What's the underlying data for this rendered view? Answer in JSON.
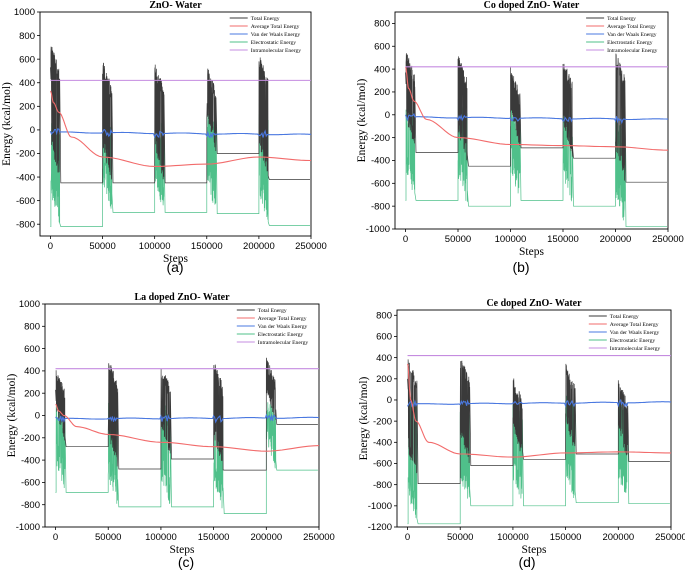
{
  "colors": {
    "total": "#3a3a3a",
    "average": "#f26b6b",
    "vdw": "#4a78e0",
    "electro": "#4fc08a",
    "intra": "#c58ce0"
  },
  "chart_data": [
    {
      "type": "line",
      "title": "ZnO- Water",
      "sublabel": "(a)",
      "xlabel": "Steps",
      "ylabel": "Energy (kcal/mol)",
      "xlim": [
        -10000,
        250000
      ],
      "ylim": [
        -900,
        1000
      ],
      "xticks": [
        0,
        50000,
        100000,
        150000,
        200000,
        250000
      ],
      "yticks": [
        -800,
        -600,
        -400,
        -200,
        0,
        200,
        400,
        600,
        800,
        1000
      ],
      "legend": [
        "Total Energy",
        "Average Total Energy",
        "Van der Waals Energy",
        "Electrostatic Energy",
        "Intramolecular Energy"
      ],
      "series": {
        "total": {
          "peaks": [
            730,
            590,
            580,
            560,
            650
          ],
          "levels": [
            -450,
            -450,
            -450,
            -200,
            -420
          ]
        },
        "electro": {
          "peaks": [
            80,
            130,
            140,
            160,
            190
          ],
          "levels": [
            -820,
            -700,
            -700,
            -710,
            -810
          ],
          "start": -820
        },
        "vdw": {
          "start": -20,
          "end": -40
        },
        "average": {
          "x": [
            0,
            3000,
            8000,
            20000,
            50000,
            100000,
            150000,
            200000,
            250000
          ],
          "y": [
            330,
            230,
            150,
            -60,
            -230,
            -310,
            -290,
            -230,
            -260
          ]
        },
        "intra": {
          "value": 420
        }
      }
    },
    {
      "type": "line",
      "title": "Co doped ZnO- Water",
      "sublabel": "(b)",
      "xlabel": "Steps",
      "ylabel": "Energy (kcal/mol)",
      "xlim": [
        -10000,
        250000
      ],
      "ylim": [
        -1000,
        900
      ],
      "xticks": [
        0,
        50000,
        100000,
        150000,
        200000,
        250000
      ],
      "yticks": [
        -1000,
        -800,
        -600,
        -400,
        -200,
        0,
        200,
        400,
        600,
        800
      ],
      "legend": [
        "Total Energy",
        "Average Total Energy",
        "Van der Waals Energy",
        "Electrostatic Energy",
        "Intramolecular Energy"
      ],
      "series": {
        "total": {
          "peaks": [
            570,
            540,
            420,
            510,
            560
          ],
          "levels": [
            -330,
            -450,
            -290,
            -380,
            -590
          ]
        },
        "electro": {
          "peaks": [
            120,
            140,
            80,
            40,
            -20
          ],
          "levels": [
            -750,
            -800,
            -750,
            -800,
            -980
          ],
          "start": -750
        },
        "vdw": {
          "start": -20,
          "end": -40
        },
        "average": {
          "x": [
            0,
            3000,
            8000,
            20000,
            50000,
            100000,
            150000,
            200000,
            250000
          ],
          "y": [
            420,
            230,
            120,
            -40,
            -200,
            -260,
            -270,
            -280,
            -310
          ]
        },
        "intra": {
          "value": 420
        }
      }
    },
    {
      "type": "line",
      "title": "La doped ZnO- Water",
      "sublabel": "(c)",
      "xlabel": "Steps",
      "ylabel": "Energy (kcal/mol)",
      "xlim": [
        -10000,
        250000
      ],
      "ylim": [
        -1000,
        1000
      ],
      "xticks": [
        0,
        50000,
        100000,
        150000,
        200000,
        250000
      ],
      "yticks": [
        -1000,
        -800,
        -600,
        -400,
        -200,
        0,
        200,
        400,
        600,
        800,
        1000
      ],
      "legend": [
        "Total Energy",
        "Average Total Energy",
        "Van der Waals Energy",
        "Electrostatic Energy",
        "Intramolecular Energy"
      ],
      "series": {
        "total": {
          "peaks": [
            430,
            520,
            480,
            500,
            530
          ],
          "levels": [
            -280,
            -480,
            -390,
            -490,
            -80
          ]
        },
        "electro": {
          "peaks": [
            100,
            120,
            140,
            120,
            160
          ],
          "levels": [
            -690,
            -820,
            -820,
            -880,
            -490
          ],
          "start": -690
        },
        "vdw": {
          "start": -30,
          "end": -20
        },
        "average": {
          "x": [
            0,
            3000,
            8000,
            20000,
            50000,
            100000,
            150000,
            200000,
            250000
          ],
          "y": [
            100,
            40,
            0,
            -100,
            -170,
            -240,
            -280,
            -320,
            -270
          ]
        },
        "intra": {
          "value": 420
        }
      }
    },
    {
      "type": "line",
      "title": "Ce doped ZnO- Water",
      "sublabel": "(d)",
      "xlabel": "Steps",
      "ylabel": "Energy (kcal/mol)",
      "xlim": [
        -10000,
        250000
      ],
      "ylim": [
        -1200,
        850
      ],
      "xticks": [
        0,
        50000,
        100000,
        150000,
        200000,
        250000
      ],
      "yticks": [
        -1200,
        -1000,
        -800,
        -600,
        -400,
        -200,
        0,
        200,
        400,
        600,
        800
      ],
      "legend": [
        "Total Energy",
        "Average Total Energy",
        "Van der Waals Energy",
        "Electrostatic Energy",
        "Intramolecular Energy"
      ],
      "series": {
        "total": {
          "peaks": [
            400,
            420,
            230,
            350,
            200
          ],
          "levels": [
            -790,
            -620,
            -560,
            -510,
            -580
          ]
        },
        "electro": {
          "peaks": [
            100,
            30,
            0,
            60,
            0
          ],
          "levels": [
            -1170,
            -1000,
            -1000,
            -970,
            -980
          ],
          "start": -1170
        },
        "vdw": {
          "start": -40,
          "end": -20
        },
        "average": {
          "x": [
            0,
            3000,
            8000,
            20000,
            50000,
            100000,
            150000,
            200000,
            250000
          ],
          "y": [
            340,
            0,
            -200,
            -400,
            -510,
            -540,
            -500,
            -490,
            -500
          ]
        },
        "intra": {
          "value": 420
        }
      }
    }
  ]
}
